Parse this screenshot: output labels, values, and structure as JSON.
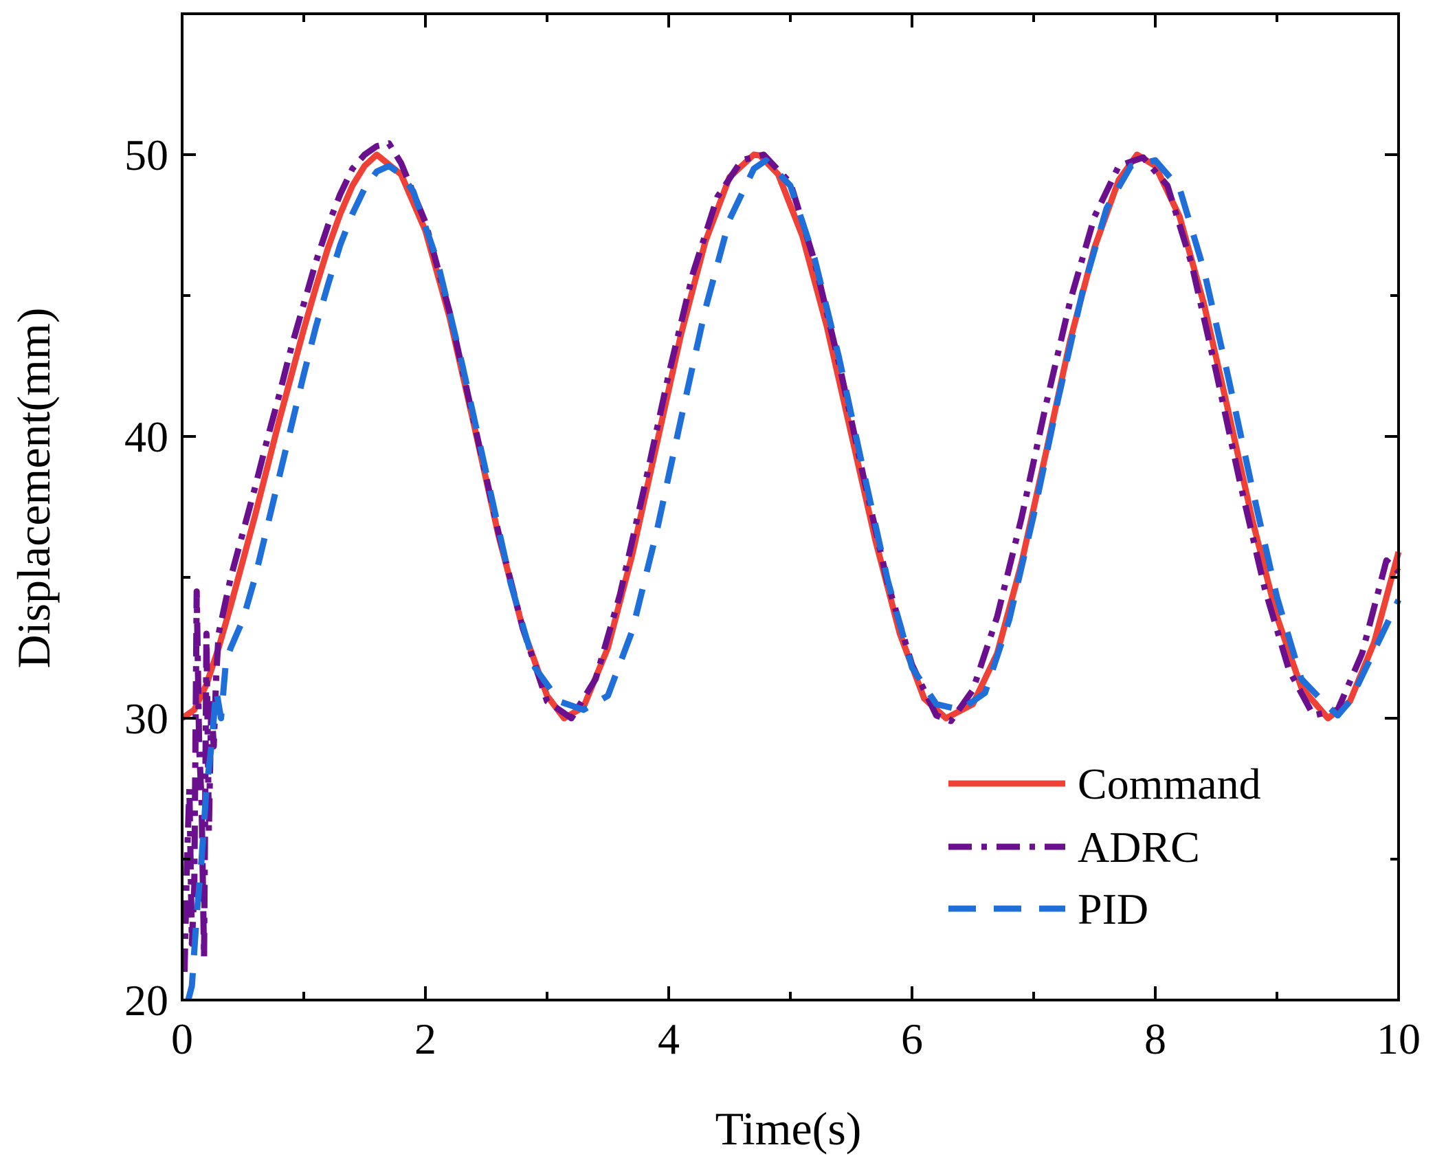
{
  "chart_data": {
    "type": "line",
    "title": "",
    "xlabel": "Time(s)",
    "ylabel": "Displacement(mm)",
    "xlim": [
      0,
      10
    ],
    "ylim": [
      20,
      55
    ],
    "xticks": [
      0,
      2,
      4,
      6,
      8,
      10
    ],
    "xtick_labels": [
      "0",
      "2",
      "4",
      "6",
      "8",
      "10"
    ],
    "yticks": [
      20,
      30,
      40,
      50
    ],
    "ytick_labels": [
      "20",
      "30",
      "40",
      "50"
    ],
    "grid": false,
    "legend_position": "bottom-right",
    "colors": {
      "command": "#ef4136",
      "adrc": "#6a0f8e",
      "pid": "#1e6fd9",
      "axis": "#000000"
    },
    "series": [
      {
        "name": "Command",
        "style": "solid",
        "x": [
          0,
          0.1,
          0.2,
          0.3,
          0.4,
          0.5,
          0.6,
          0.7,
          0.8,
          0.9,
          1,
          1.1,
          1.2,
          1.3,
          1.4,
          1.5,
          1.6,
          1.8,
          2,
          2.2,
          2.4,
          2.6,
          2.8,
          3,
          3.14,
          3.3,
          3.5,
          3.7,
          3.9,
          4.1,
          4.3,
          4.5,
          4.7,
          4.75,
          4.9,
          5.1,
          5.3,
          5.5,
          5.7,
          5.9,
          6.1,
          6.28,
          6.5,
          6.7,
          6.9,
          7.1,
          7.3,
          7.5,
          7.7,
          7.85,
          8,
          8.2,
          8.4,
          8.6,
          8.8,
          9,
          9.2,
          9.42,
          9.6,
          9.8,
          10
        ],
        "values": [
          30,
          30.3,
          31.2,
          32.5,
          34,
          35.6,
          37.2,
          38.9,
          40.6,
          42.2,
          43.8,
          45.3,
          46.7,
          47.9,
          48.9,
          49.6,
          50,
          49.3,
          47.3,
          44.2,
          40.4,
          36.5,
          33.2,
          30.8,
          30,
          30.4,
          32.5,
          35.8,
          39.7,
          43.6,
          46.9,
          49.2,
          50,
          49.97,
          49.3,
          47.1,
          43.9,
          40.1,
          36.3,
          33,
          30.7,
          30,
          30.5,
          32.3,
          35.5,
          39.4,
          43.4,
          46.7,
          49.1,
          50,
          49.6,
          47.8,
          44.7,
          40.9,
          37,
          33.6,
          31.1,
          30,
          30.6,
          32.7,
          35.9
        ]
      },
      {
        "name": "ADRC",
        "style": "dash-dot",
        "x": [
          0.02,
          0.04,
          0.06,
          0.08,
          0.1,
          0.12,
          0.14,
          0.16,
          0.18,
          0.2,
          0.22,
          0.24,
          0.26,
          0.28,
          0.3,
          0.35,
          0.4,
          0.5,
          0.6,
          0.7,
          0.8,
          0.9,
          1,
          1.1,
          1.2,
          1.3,
          1.4,
          1.5,
          1.6,
          1.7,
          1.8,
          2,
          2.2,
          2.4,
          2.6,
          2.8,
          3,
          3.2,
          3.4,
          3.6,
          3.8,
          4,
          4.2,
          4.4,
          4.6,
          4.78,
          5,
          5.2,
          5.4,
          5.6,
          5.8,
          6,
          6.2,
          6.32,
          6.5,
          6.7,
          6.9,
          7.1,
          7.3,
          7.5,
          7.7,
          7.9,
          8.1,
          8.3,
          8.5,
          8.7,
          8.9,
          9.1,
          9.3,
          9.5,
          9.7,
          9.9,
          10
        ],
        "values": [
          21,
          25,
          27.5,
          22,
          24,
          34.5,
          29,
          27,
          21.5,
          33,
          26,
          30.5,
          29,
          31.5,
          33,
          34,
          35,
          36.6,
          38.2,
          39.9,
          41.5,
          43.2,
          44.7,
          46.2,
          47.5,
          48.6,
          49.5,
          50,
          50.3,
          50.4,
          49.7,
          47.6,
          44.4,
          40.5,
          36.6,
          33.2,
          30.6,
          30,
          31.4,
          34.4,
          38.2,
          42.2,
          45.8,
          48.5,
          49.8,
          50,
          49,
          46.2,
          42.6,
          38.6,
          34.8,
          31.9,
          30.1,
          29.9,
          31,
          33.6,
          37.1,
          41.1,
          44.8,
          47.8,
          49.6,
          49.9,
          48.9,
          46.1,
          42.3,
          38.3,
          34.6,
          31.7,
          30.1,
          30.3,
          32.3,
          35.6,
          35.2
        ]
      },
      {
        "name": "PID",
        "style": "dashed",
        "x": [
          0.05,
          0.08,
          0.12,
          0.16,
          0.2,
          0.24,
          0.28,
          0.32,
          0.36,
          0.4,
          0.5,
          0.6,
          0.7,
          0.8,
          0.9,
          1,
          1.1,
          1.2,
          1.3,
          1.4,
          1.5,
          1.6,
          1.7,
          1.8,
          1.9,
          2.1,
          2.3,
          2.5,
          2.7,
          2.9,
          3.1,
          3.3,
          3.5,
          3.7,
          3.9,
          4.1,
          4.3,
          4.5,
          4.7,
          4.8,
          5,
          5.2,
          5.4,
          5.6,
          5.8,
          6,
          6.2,
          6.4,
          6.6,
          6.8,
          7,
          7.2,
          7.4,
          7.6,
          7.8,
          8,
          8.2,
          8.4,
          8.6,
          8.8,
          9,
          9.2,
          9.4,
          9.5,
          9.6,
          9.8,
          10
        ],
        "values": [
          20,
          20.5,
          23,
          25,
          27.5,
          29,
          31,
          30,
          32,
          32.5,
          33.5,
          35,
          36.8,
          38.6,
          40.4,
          42.2,
          43.9,
          45.4,
          46.8,
          47.9,
          48.8,
          49.4,
          49.6,
          49.3,
          48.7,
          46.2,
          42.6,
          38.7,
          34.8,
          31.8,
          30.6,
          30.3,
          30.8,
          33.1,
          36.6,
          40.6,
          44.5,
          47.7,
          49.5,
          49.8,
          48.9,
          46.3,
          42.8,
          38.8,
          34.9,
          31.8,
          30.5,
          30.3,
          30.9,
          33.5,
          37.2,
          41.3,
          45.1,
          48.1,
          49.6,
          49.8,
          48.8,
          45.9,
          42.1,
          38.1,
          34.3,
          31.4,
          30.5,
          30.1,
          30.6,
          32.4,
          34.2
        ]
      }
    ]
  }
}
